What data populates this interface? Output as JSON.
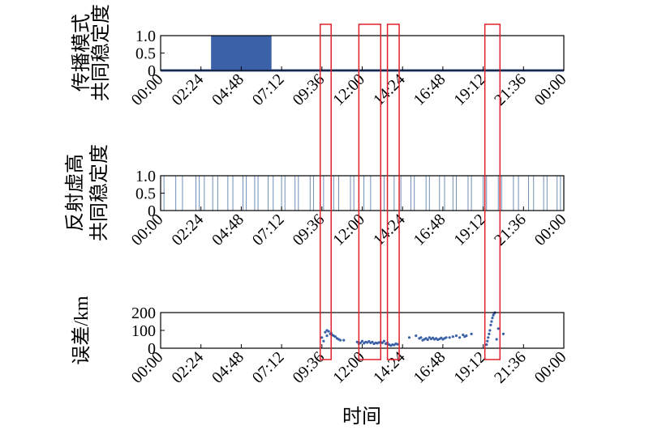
{
  "chart_data": [
    {
      "type": "area",
      "ylabel": [
        "传播模式",
        "共同稳定度"
      ],
      "x_ticks": [
        "00:00",
        "02:24",
        "04:48",
        "07:12",
        "09:36",
        "12:00",
        "14:24",
        "16:48",
        "19:12",
        "21:36",
        "00:00"
      ],
      "y_ticks": [
        "1.0",
        "0.5",
        "0"
      ],
      "ylim": [
        0,
        1
      ],
      "xlim_hours": [
        0,
        24
      ],
      "step_segments": [
        {
          "start": "03:00",
          "end": "06:36",
          "value": 1
        }
      ],
      "color": "#3b62a8"
    },
    {
      "type": "line",
      "ylabel": [
        "反射虚高",
        "共同稳定度"
      ],
      "x_ticks": [
        "00:00",
        "02:24",
        "04:48",
        "07:12",
        "09:36",
        "12:00",
        "14:24",
        "16:48",
        "19:12",
        "21:36",
        "00:00"
      ],
      "y_ticks": [
        "1.0",
        "0.5",
        "0"
      ],
      "ylim": [
        0,
        1
      ],
      "xlim_hours": [
        0,
        24
      ],
      "transitions_hours": [
        0.2,
        0.9,
        1.3,
        2.1,
        2.3,
        2.6,
        3.1,
        3.4,
        4.0,
        4.3,
        4.9,
        5.1,
        5.6,
        5.8,
        6.4,
        6.7,
        7.2,
        7.4,
        8.0,
        8.2,
        8.9,
        9.1,
        9.5,
        9.7,
        10.3,
        10.6,
        11.3,
        11.5,
        12.1,
        12.5,
        13.1,
        13.3,
        13.9,
        14.3,
        14.9,
        15.1,
        15.8,
        16.0,
        16.6,
        16.9,
        17.4,
        17.6,
        18.3,
        18.5,
        19.2,
        19.4,
        20.1,
        20.3,
        21.0,
        21.3,
        21.9,
        22.2,
        22.8,
        23.0,
        23.6,
        23.8
      ],
      "color": "#6f8fb8"
    },
    {
      "type": "scatter",
      "ylabel": [
        "误差/km"
      ],
      "x_ticks": [
        "00:00",
        "02:24",
        "04:48",
        "07:12",
        "09:36",
        "12:00",
        "14:24",
        "16:48",
        "19:12",
        "21:36",
        "00:00"
      ],
      "y_ticks": [
        "200",
        "100",
        "0"
      ],
      "ylim": [
        0,
        200
      ],
      "xlim_hours": [
        0,
        24
      ],
      "series": [
        {
          "x_hours": [
            9.6,
            9.7,
            9.8,
            9.9,
            10.0,
            10.1,
            10.15,
            10.2,
            10.3,
            10.4,
            10.5,
            10.6,
            10.7
          ],
          "y": [
            60,
            40,
            90,
            70,
            95,
            80,
            85,
            75,
            70,
            65,
            55,
            50,
            45
          ]
        },
        {
          "x_hours": [
            11.7,
            11.8,
            11.9,
            12.0,
            12.1,
            12.2,
            12.3,
            12.4,
            12.5,
            12.6,
            12.7,
            12.8,
            12.9,
            13.0,
            13.1,
            13.2
          ],
          "y": [
            35,
            25,
            30,
            40,
            28,
            35,
            32,
            38,
            30,
            35,
            25,
            30,
            28,
            32,
            35,
            30
          ]
        },
        {
          "x_hours": [
            13.4,
            13.5,
            13.6,
            13.7,
            13.8,
            13.9,
            14.0,
            14.1
          ],
          "y": [
            25,
            30,
            20,
            15,
            20,
            18,
            25,
            22
          ]
        },
        {
          "x_hours": [
            15.2,
            15.4,
            15.5,
            15.6,
            15.7,
            15.8,
            15.9,
            16.0,
            16.1,
            16.2,
            16.3,
            16.4,
            16.5,
            16.6,
            16.7,
            16.8,
            16.9,
            17.0,
            17.2,
            17.4,
            17.6,
            17.8,
            18.0,
            18.1,
            18.2
          ],
          "y": [
            70,
            55,
            60,
            45,
            50,
            55,
            48,
            60,
            52,
            58,
            50,
            55,
            48,
            52,
            58,
            50,
            55,
            60,
            60,
            65,
            70,
            60,
            75,
            65,
            70
          ]
        },
        {
          "x_hours": [
            19.4,
            19.45,
            19.5,
            19.55,
            19.6,
            19.65,
            19.7,
            19.75,
            19.8,
            19.85,
            19.9,
            20.1,
            20.4
          ],
          "y": [
            20,
            40,
            60,
            80,
            100,
            130,
            150,
            170,
            185,
            195,
            200,
            110,
            80
          ]
        },
        {
          "x_hours": [
            9.9,
            10.9,
            13.3,
            14.8,
            18.5,
            20.0
          ],
          "y": [
            100,
            45,
            40,
            60,
            80,
            50
          ]
        }
      ],
      "color": "#3b62a8"
    }
  ],
  "xlabel": "时间",
  "highlight_windows_hours": [
    [
      9.5,
      10.15
    ],
    [
      11.8,
      13.1
    ],
    [
      13.5,
      14.2
    ],
    [
      19.3,
      20.2
    ]
  ],
  "highlight_color": "#e0202a"
}
